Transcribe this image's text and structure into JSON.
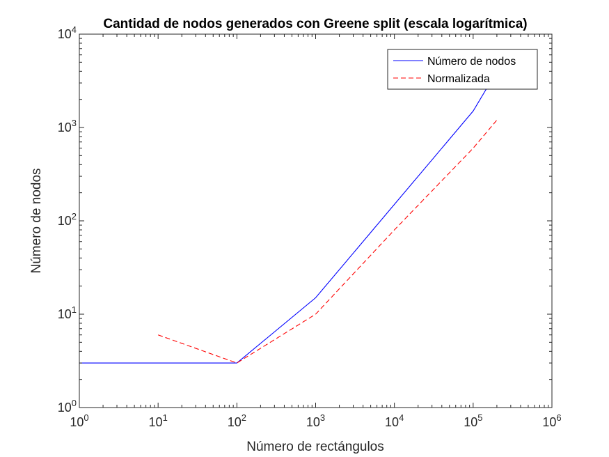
{
  "chart_data": {
    "type": "line",
    "title": "Cantidad de nodos generados con Greene split (escala logarítmica)",
    "xlabel": "Número de rectángulos",
    "ylabel": "Número de nodos",
    "xscale": "log",
    "yscale": "log",
    "xlim": [
      1,
      1000000
    ],
    "ylim": [
      1,
      10000
    ],
    "xticks": [
      1,
      10,
      100,
      1000,
      10000,
      100000,
      1000000
    ],
    "yticks": [
      1,
      10,
      100,
      1000,
      10000
    ],
    "xtick_labels": [
      {
        "base": "10",
        "exp": "0"
      },
      {
        "base": "10",
        "exp": "1"
      },
      {
        "base": "10",
        "exp": "2"
      },
      {
        "base": "10",
        "exp": "3"
      },
      {
        "base": "10",
        "exp": "4"
      },
      {
        "base": "10",
        "exp": "5"
      },
      {
        "base": "10",
        "exp": "6"
      }
    ],
    "ytick_labels": [
      {
        "base": "10",
        "exp": "0"
      },
      {
        "base": "10",
        "exp": "1"
      },
      {
        "base": "10",
        "exp": "2"
      },
      {
        "base": "10",
        "exp": "3"
      },
      {
        "base": "10",
        "exp": "4"
      }
    ],
    "grid": false,
    "legend_position": "top-right",
    "series": [
      {
        "name": "Número de nodos",
        "color": "#0000ff",
        "style": "solid",
        "x": [
          1,
          10,
          100,
          1000,
          10000,
          100000,
          200000
        ],
        "y": [
          3,
          3,
          3,
          15,
          150,
          1500,
          4000
        ]
      },
      {
        "name": "Normalizada",
        "color": "#ff0000",
        "style": "dashed",
        "x": [
          10,
          100,
          1000,
          10000,
          100000,
          200000
        ],
        "y": [
          6,
          3,
          10,
          80,
          600,
          1200
        ]
      }
    ]
  }
}
